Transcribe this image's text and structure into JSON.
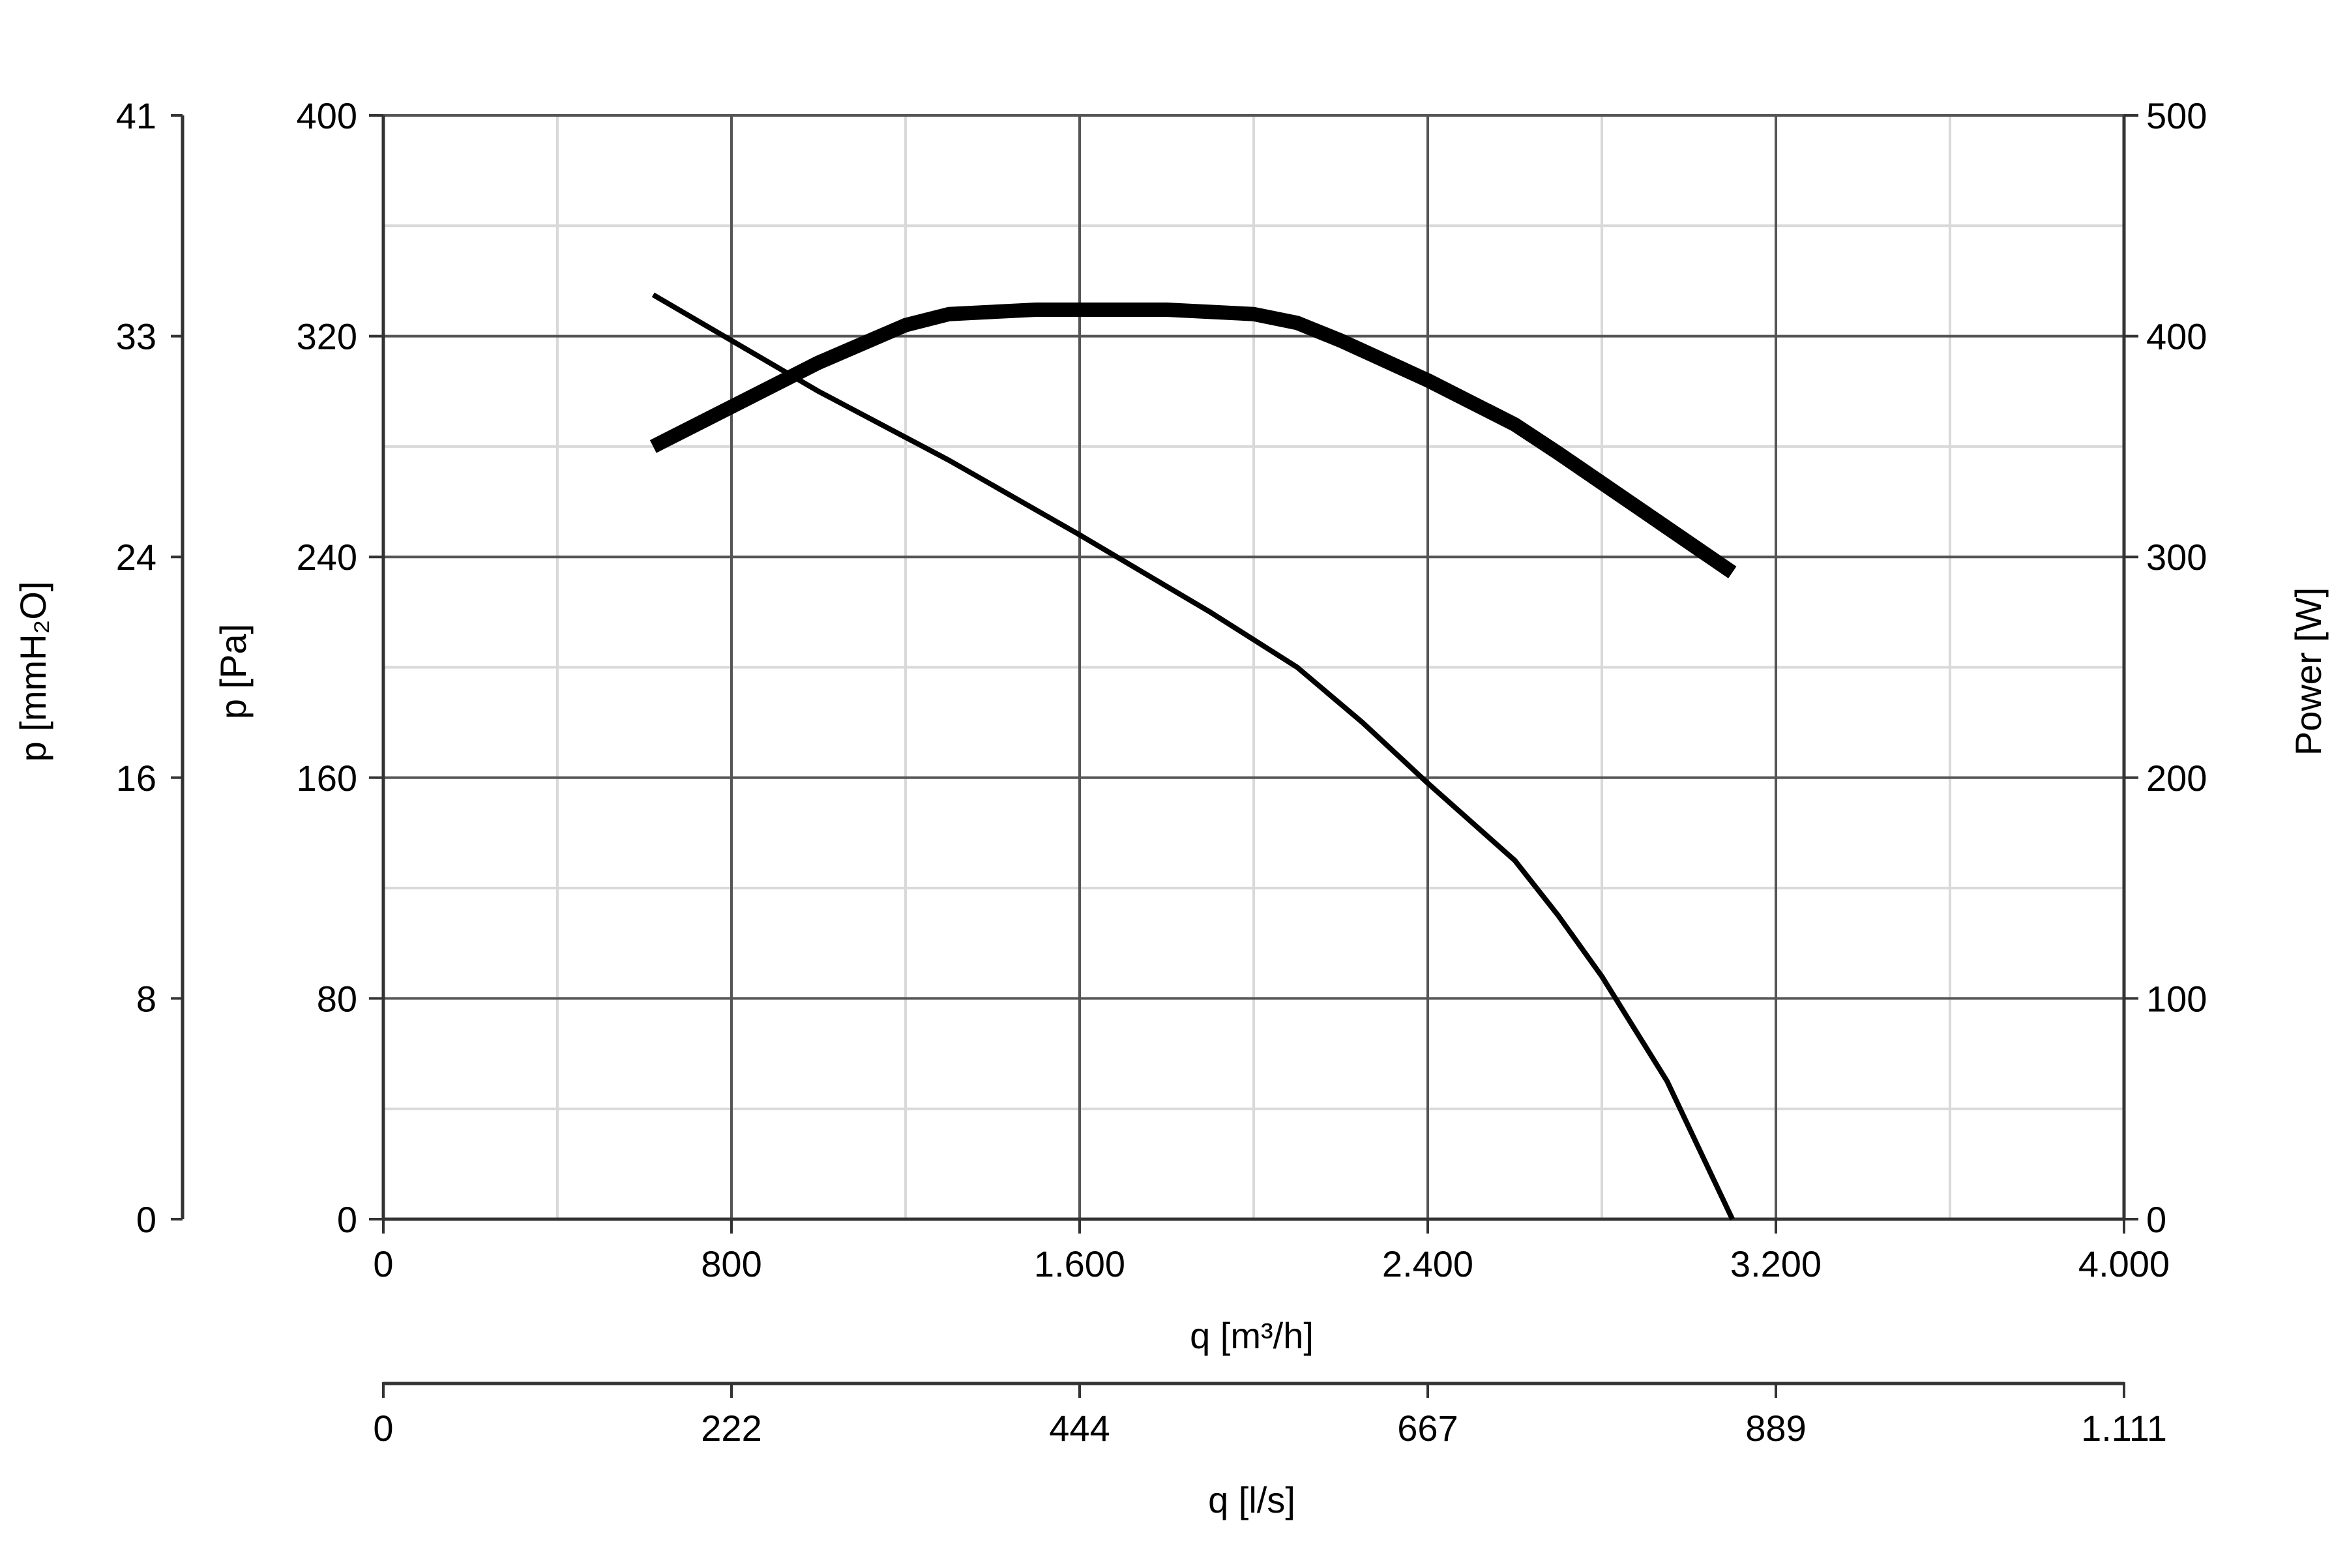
{
  "chart_data": {
    "type": "line",
    "title": "",
    "x_axis": {
      "label": "q [m³/h]",
      "range": [
        0,
        4000
      ],
      "ticks": [
        0,
        800,
        1600,
        2400,
        3200,
        4000
      ],
      "tick_labels": [
        "0",
        "800",
        "1.600",
        "2.400",
        "3.200",
        "4.000"
      ],
      "minor_gridlines": [
        400,
        1200,
        2000,
        2800,
        3600
      ]
    },
    "x2_axis": {
      "label": "q [l/s]",
      "range": [
        0,
        1111
      ],
      "tick_labels": [
        "0",
        "222",
        "444",
        "667",
        "889",
        "1.111"
      ]
    },
    "y_left_axis": {
      "label": "p [Pa]",
      "range": [
        0,
        400
      ],
      "ticks": [
        0,
        80,
        160,
        240,
        320,
        400
      ],
      "tick_labels": [
        "0",
        "80",
        "160",
        "240",
        "320",
        "400"
      ],
      "minor_gridlines": [
        40,
        120,
        200,
        280,
        360
      ]
    },
    "y_outer_axis": {
      "label": "p [mmH₂O]",
      "range": [
        0,
        41
      ],
      "tick_labels": [
        "0",
        "8",
        "16",
        "24",
        "33",
        "41"
      ]
    },
    "y_right_axis": {
      "label": "Power [W]",
      "range": [
        0,
        500
      ],
      "tick_labels": [
        "0",
        "100",
        "200",
        "300",
        "400",
        "500"
      ]
    },
    "grid": true,
    "series": [
      {
        "axis": "y_left",
        "style": "thin",
        "x": [
          620,
          1000,
          1300,
          1600,
          1900,
          2100,
          2250,
          2400,
          2600,
          2700,
          2800,
          2950,
          3100
        ],
        "y": [
          335,
          300,
          275,
          248,
          220,
          200,
          180,
          158,
          130,
          110,
          88,
          50,
          0
        ]
      },
      {
        "axis": "y_right",
        "style": "thick",
        "x": [
          620,
          800,
          1000,
          1200,
          1300,
          1500,
          1800,
          2000,
          2100,
          2200,
          2400,
          2600,
          2700,
          2900,
          3100
        ],
        "y": [
          350,
          368,
          388,
          405,
          410,
          412,
          412,
          410,
          406,
          398,
          380,
          360,
          347,
          320,
          293
        ]
      }
    ]
  }
}
